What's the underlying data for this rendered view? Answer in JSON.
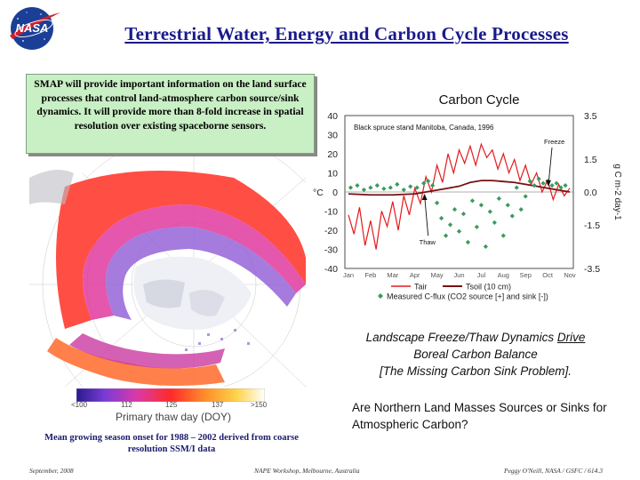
{
  "logo_text": "NASA",
  "title": "Terrestrial Water, Energy and Carbon Cycle Processes",
  "smap_text": "SMAP will provide important information on the land surface processes that control land-atmosphere carbon source/sink dynamics.  It will provide more than 8-fold increase in spatial resolution over existing spaceborne sensors.",
  "map": {
    "colorbar_ticks": [
      "<100",
      "112",
      "125",
      "137",
      ">150"
    ],
    "colorbar_label": "Primary thaw day (DOY)",
    "caption": "Mean growing season onset for 1988 – 2002 derived from coarse resolution SSM/I data"
  },
  "chart_data": {
    "type": "line",
    "title": "Carbon Cycle",
    "annotation": "Black spruce stand Manitoba, Canada, 1996",
    "freeze_label": "Freeze",
    "thaw_label": "Thaw",
    "left_axis": {
      "label": "°C",
      "ylim": [
        -40,
        40
      ],
      "ticks": [
        "40",
        "30",
        "20",
        "10",
        "0",
        "-10",
        "-20",
        "-30",
        "-40"
      ]
    },
    "right_axis": {
      "label": "g C m-2 day-1",
      "ylim": [
        -3.5,
        3.5
      ],
      "ticks": [
        "3.5",
        "1.5",
        "0.0",
        "-1.5",
        "-3.5"
      ]
    },
    "categories": [
      "Jan",
      "Feb",
      "Mar",
      "Apr",
      "May",
      "Jun",
      "Jul",
      "Aug",
      "Sep",
      "Oct",
      "Nov"
    ],
    "legend": [
      "Tair",
      "Tsoil (10 cm)",
      "Measured C-flux (CO2 source [+] and sink [-])"
    ],
    "colors": {
      "tair": "#e41a1c",
      "tsoil": "#7a1010",
      "flux": "#3a9a5c"
    },
    "series": [
      {
        "name": "Tair",
        "x": [
          0,
          0.25,
          0.5,
          0.75,
          1,
          1.25,
          1.5,
          1.75,
          2,
          2.25,
          2.5,
          2.75,
          3,
          3.25,
          3.5,
          3.75,
          4,
          4.25,
          4.5,
          4.75,
          5,
          5.25,
          5.5,
          5.75,
          6,
          6.25,
          6.5,
          6.75,
          7,
          7.25,
          7.5,
          7.75,
          8,
          8.25,
          8.5,
          8.75,
          9,
          9.25,
          9.5,
          9.75,
          10
        ],
        "values": [
          -12,
          -22,
          -8,
          -28,
          -15,
          -30,
          -10,
          -18,
          -5,
          -20,
          -2,
          -12,
          2,
          -6,
          8,
          0,
          14,
          5,
          20,
          10,
          22,
          15,
          24,
          14,
          25,
          18,
          22,
          12,
          20,
          10,
          17,
          6,
          14,
          4,
          10,
          0,
          6,
          -4,
          4,
          -2,
          2
        ]
      },
      {
        "name": "Tsoil (10 cm)",
        "x": [
          0,
          1,
          2,
          3,
          3.5,
          4,
          4.5,
          5,
          5.5,
          6,
          6.5,
          7,
          7.5,
          8,
          8.5,
          9,
          9.5,
          10
        ],
        "values": [
          -1,
          -1.5,
          -1.5,
          -1,
          0,
          1,
          2,
          3,
          5,
          6,
          6,
          5.5,
          5,
          4,
          3,
          2,
          1,
          0
        ]
      },
      {
        "name": "Measured C-flux",
        "x": [
          0.1,
          0.4,
          0.7,
          1.0,
          1.3,
          1.6,
          1.9,
          2.2,
          2.5,
          2.8,
          3.1,
          3.4,
          3.6,
          3.8,
          4.0,
          4.2,
          4.4,
          4.6,
          4.8,
          5.0,
          5.2,
          5.4,
          5.6,
          5.8,
          6.0,
          6.2,
          6.4,
          6.6,
          6.8,
          7.0,
          7.2,
          7.4,
          7.6,
          7.8,
          8.0,
          8.2,
          8.4,
          8.6,
          8.8,
          9.0,
          9.2,
          9.4,
          9.6,
          9.8
        ],
        "values": [
          0.2,
          0.3,
          0.1,
          0.2,
          0.3,
          0.15,
          0.2,
          0.35,
          0.1,
          0.25,
          0.2,
          0.4,
          0.5,
          0.3,
          -0.5,
          -1.2,
          -2.0,
          -1.5,
          -0.8,
          -1.8,
          -1.0,
          -2.3,
          -0.4,
          -1.6,
          -0.6,
          -2.5,
          -0.9,
          -1.4,
          -0.3,
          -2.0,
          -0.6,
          -1.1,
          0.2,
          -0.8,
          -0.2,
          0.5,
          0.3,
          0.6,
          0.4,
          0.5,
          0.3,
          0.4,
          0.2,
          0.3
        ]
      }
    ]
  },
  "landscape_text": {
    "line1_a": "Landscape Freeze/Thaw Dynamics ",
    "line1_b": "Drive",
    "line2": "Boreal Carbon Balance",
    "line3": "[The Missing Carbon Sink Problem]."
  },
  "question": "Are Northern Land Masses Sources or Sinks for Atmospheric Carbon?",
  "footer": {
    "date": "September, 2008",
    "venue": "NAPE Workshop, Melbourne, Australia",
    "author": "Peggy O'Neill,   NASA / GSFC / 614.3"
  }
}
